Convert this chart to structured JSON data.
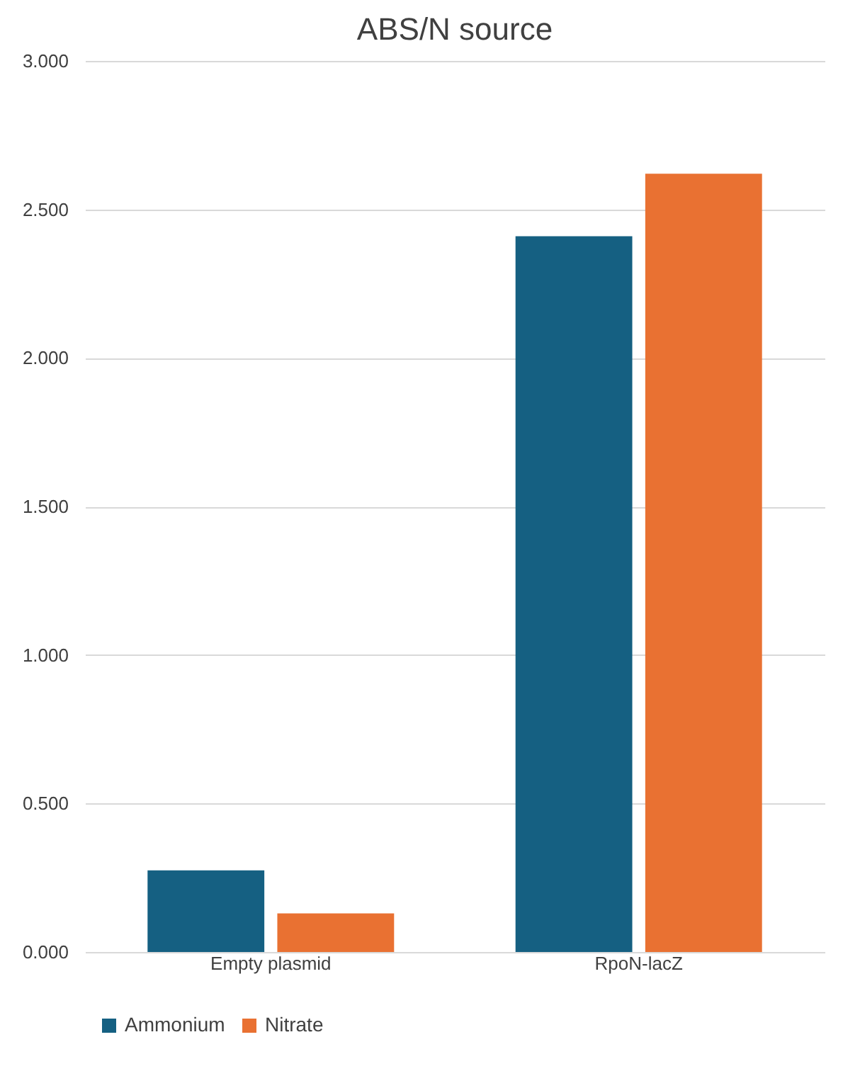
{
  "chart_data": {
    "type": "bar",
    "title": "ABS/N source",
    "categories": [
      "Empty plasmid",
      "RpoN-lacZ"
    ],
    "series": [
      {
        "name": "Ammonium",
        "color": "#156082",
        "values": [
          0.275,
          2.41
        ]
      },
      {
        "name": "Nitrate",
        "color": "#e97132",
        "values": [
          0.13,
          2.62
        ]
      }
    ],
    "ylim": [
      0,
      3
    ],
    "yticks": [
      {
        "value": 0,
        "label": "0.000"
      },
      {
        "value": 0.5,
        "label": "0.500"
      },
      {
        "value": 1,
        "label": "1.000"
      },
      {
        "value": 1.5,
        "label": "1.500"
      },
      {
        "value": 2,
        "label": "2.000"
      },
      {
        "value": 2.5,
        "label": "2.500"
      },
      {
        "value": 3,
        "label": "3.000"
      }
    ],
    "grid": "y",
    "legend": "bottom"
  }
}
